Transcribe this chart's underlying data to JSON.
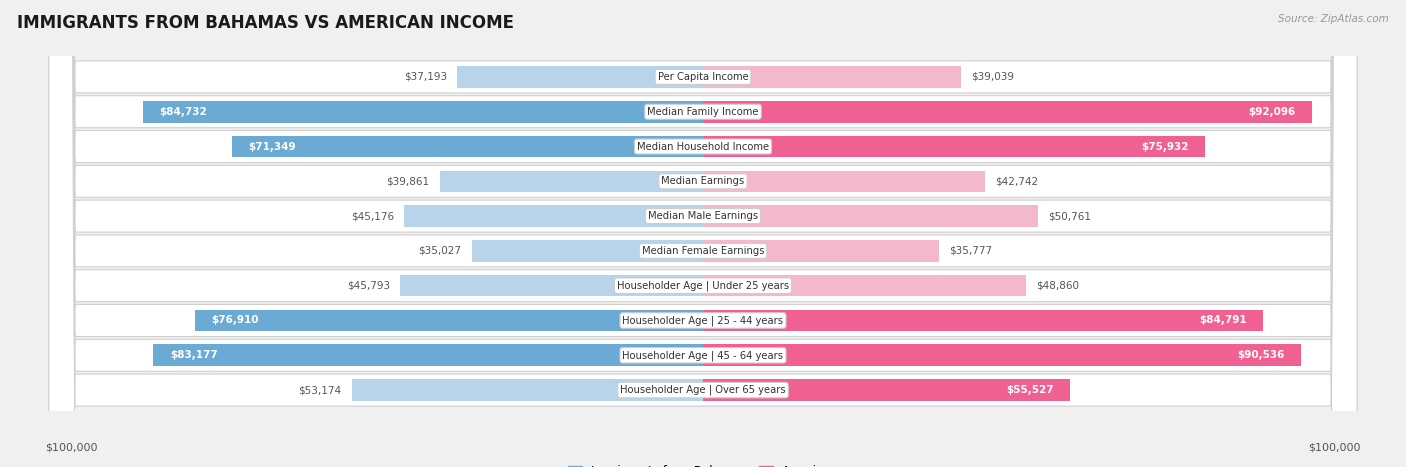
{
  "title": "IMMIGRANTS FROM BAHAMAS VS AMERICAN INCOME",
  "source": "Source: ZipAtlas.com",
  "categories": [
    "Per Capita Income",
    "Median Family Income",
    "Median Household Income",
    "Median Earnings",
    "Median Male Earnings",
    "Median Female Earnings",
    "Householder Age | Under 25 years",
    "Householder Age | 25 - 44 years",
    "Householder Age | 45 - 64 years",
    "Householder Age | Over 65 years"
  ],
  "bahamas_values": [
    37193,
    84732,
    71349,
    39861,
    45176,
    35027,
    45793,
    76910,
    83177,
    53174
  ],
  "american_values": [
    39039,
    92096,
    75932,
    42742,
    50761,
    35777,
    48860,
    84791,
    90536,
    55527
  ],
  "bahamas_labels": [
    "$37,193",
    "$84,732",
    "$71,349",
    "$39,861",
    "$45,176",
    "$35,027",
    "$45,793",
    "$76,910",
    "$83,177",
    "$53,174"
  ],
  "american_labels": [
    "$39,039",
    "$92,096",
    "$75,932",
    "$42,742",
    "$50,761",
    "$35,777",
    "$48,860",
    "$84,791",
    "$90,536",
    "$55,527"
  ],
  "max_value": 100000,
  "bahamas_color_light": "#b8d4ea",
  "bahamas_color_dark": "#6aaad4",
  "american_color_light": "#f4b8cc",
  "american_color_dark": "#f06090",
  "label_outside_color": "#555555",
  "label_inside_color": "#ffffff",
  "background_color": "#f0f0f0",
  "row_bg_color": "#ffffff",
  "row_border_color": "#d0d0d0",
  "legend_bahamas": "Immigrants from Bahamas",
  "legend_american": "American",
  "xlabel_left": "$100,000",
  "xlabel_right": "$100,000",
  "inside_threshold": 55000
}
